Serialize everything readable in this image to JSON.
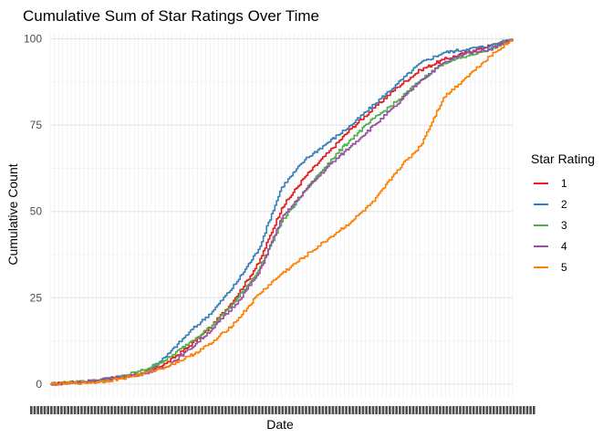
{
  "chart_data": {
    "type": "line",
    "title": "Cumulative Sum of Star Ratings Over Time",
    "xlabel": "Date",
    "ylabel": "Cumulative Count",
    "ylim": [
      -4,
      102
    ],
    "yticks": [
      0,
      25,
      50,
      75,
      100
    ],
    "x_tick_labels_overplotted": true,
    "grid": true,
    "legend": {
      "title": "Star Rating",
      "position": "right"
    },
    "x": [
      0,
      0.05,
      0.1,
      0.15,
      0.2,
      0.25,
      0.3,
      0.35,
      0.4,
      0.45,
      0.5,
      0.55,
      0.6,
      0.65,
      0.7,
      0.75,
      0.8,
      0.85,
      0.9,
      0.95,
      1.0
    ],
    "series": [
      {
        "name": "1",
        "color": "#E41A1C",
        "values": [
          0,
          0.5,
          1,
          2,
          3,
          6,
          11,
          17,
          25,
          35,
          51,
          60,
          67,
          74,
          80,
          86,
          91,
          94,
          96,
          98,
          100
        ]
      },
      {
        "name": "2",
        "color": "#377EB8",
        "values": [
          0,
          0.5,
          1,
          2,
          3,
          8,
          15,
          21,
          29,
          39,
          57,
          65,
          70,
          75,
          81,
          87,
          93,
          96,
          97,
          98,
          100
        ]
      },
      {
        "name": "3",
        "color": "#4DAF4A",
        "values": [
          0,
          0.5,
          1,
          2,
          4,
          7,
          12,
          17,
          24,
          33,
          47,
          56,
          64,
          71,
          77,
          82,
          88,
          93,
          95,
          97,
          100
        ]
      },
      {
        "name": "4",
        "color": "#984EA3",
        "values": [
          0,
          0.5,
          1,
          2,
          3,
          5,
          10,
          16,
          23,
          32,
          48,
          56,
          63,
          69,
          75,
          81,
          88,
          93,
          96,
          97,
          100
        ]
      },
      {
        "name": "5",
        "color": "#FF7F00",
        "values": [
          0,
          0.3,
          0.5,
          1.5,
          3,
          5,
          8,
          12,
          18,
          26,
          32,
          37,
          42,
          47,
          53,
          62,
          69,
          83,
          89,
          95,
          100
        ]
      }
    ]
  }
}
